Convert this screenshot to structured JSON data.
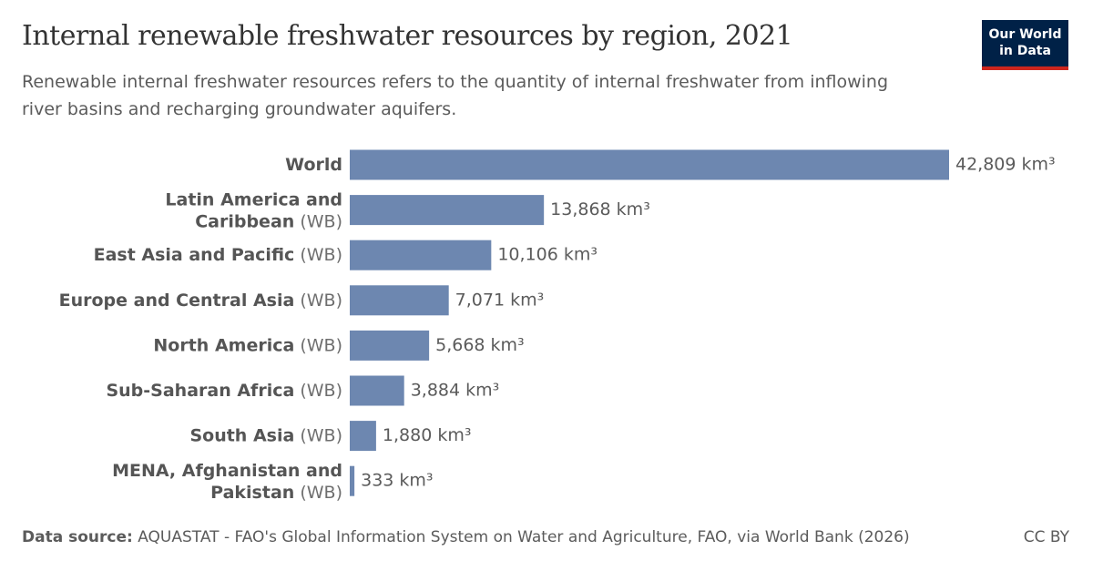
{
  "chart_data": {
    "type": "bar",
    "orientation": "horizontal",
    "title": "Internal renewable freshwater resources by region, 2021",
    "subtitle": "Renewable internal freshwater resources refers to the quantity of internal freshwater from inflowing river basins and recharging groundwater aquifers.",
    "categories": [
      {
        "name": "World"
      },
      {
        "name": "Latin America and Caribbean",
        "suffix": "(WB)"
      },
      {
        "name": "East Asia and Pacific",
        "suffix": "(WB)"
      },
      {
        "name": "Europe and Central Asia",
        "suffix": "(WB)"
      },
      {
        "name": "North America",
        "suffix": "(WB)"
      },
      {
        "name": "Sub-Saharan Africa",
        "suffix": "(WB)"
      },
      {
        "name": "South Asia",
        "suffix": "(WB)"
      },
      {
        "name": "MENA, Afghanistan and Pakistan",
        "suffix": "(WB)"
      }
    ],
    "values": [
      42809,
      13868,
      10106,
      7071,
      5668,
      3884,
      1880,
      333
    ],
    "value_labels": [
      "42,809 km³",
      "13,868 km³",
      "10,106 km³",
      "7,071 km³",
      "5,668 km³",
      "3,884 km³",
      "1,880 km³",
      "333 km³"
    ],
    "color": "#6d87b0"
  },
  "logo": "Our World in Data",
  "footer": {
    "source_label": "Data source:",
    "source": "AQUASTAT - FAO's Global Information System on Water and Agriculture, FAO, via World Bank (2026)",
    "license": "CC BY"
  }
}
